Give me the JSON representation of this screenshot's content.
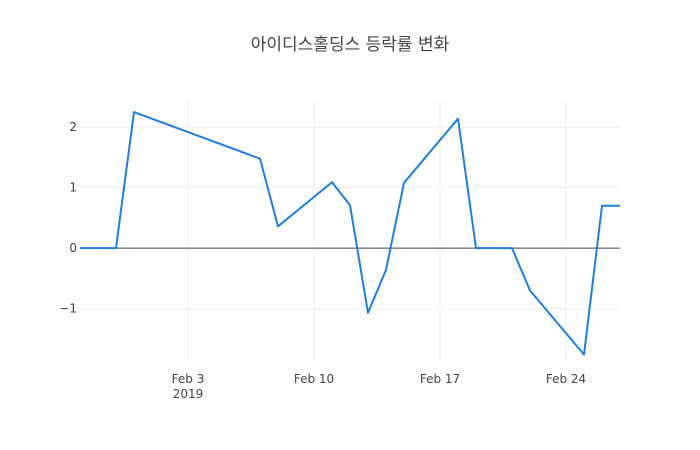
{
  "chart_data": {
    "type": "line",
    "title": "아이디스홀딩스 등락률 변화",
    "xlabel": "",
    "ylabel": "",
    "x": [
      "2019-01-28",
      "2019-01-29",
      "2019-01-30",
      "2019-01-31",
      "2019-02-07",
      "2019-02-08",
      "2019-02-11",
      "2019-02-12",
      "2019-02-13",
      "2019-02-14",
      "2019-02-15",
      "2019-02-18",
      "2019-02-19",
      "2019-02-20",
      "2019-02-21",
      "2019-02-22",
      "2019-02-25",
      "2019-02-26",
      "2019-02-27"
    ],
    "series": [
      {
        "name": "",
        "color": "#1f7fe0",
        "values": [
          0,
          0,
          0,
          2.25,
          1.48,
          0.36,
          1.09,
          0.71,
          -1.07,
          -0.36,
          1.08,
          2.14,
          0,
          0,
          0,
          -0.7,
          -1.76,
          0.7,
          0.7
        ]
      }
    ],
    "xlim": [
      "2019-01-28",
      "2019-02-27"
    ],
    "ylim": [
      -1.85,
      2.45
    ],
    "x_ticks": [
      {
        "date": "2019-02-03",
        "label": "Feb 3",
        "sublabel": "2019"
      },
      {
        "date": "2019-02-10",
        "label": "Feb 10",
        "sublabel": ""
      },
      {
        "date": "2019-02-17",
        "label": "Feb 17",
        "sublabel": ""
      },
      {
        "date": "2019-02-24",
        "label": "Feb 24",
        "sublabel": ""
      }
    ],
    "y_ticks": [
      {
        "value": 2,
        "label": "2"
      },
      {
        "value": 1,
        "label": "1"
      },
      {
        "value": 0,
        "label": "0"
      },
      {
        "value": -1,
        "label": "−1"
      }
    ],
    "grid": true,
    "legend": "none",
    "zero_line": true
  }
}
